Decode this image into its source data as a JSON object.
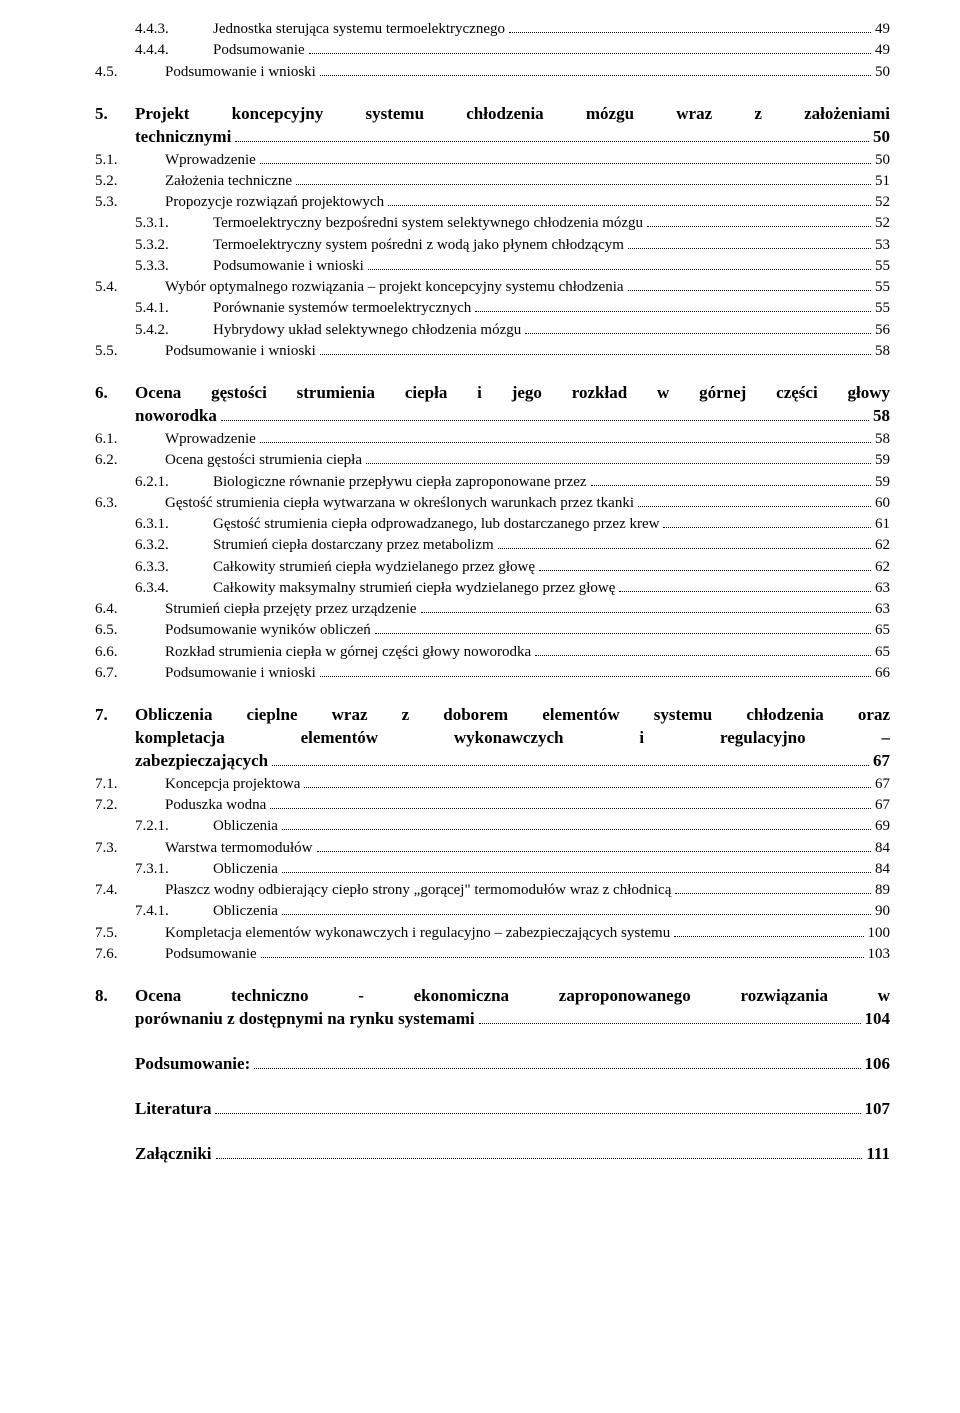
{
  "entries": [
    {
      "lvl": 3,
      "num": "4.4.3.",
      "title": "Jednostka sterująca systemu termoelektrycznego",
      "page": "49"
    },
    {
      "lvl": 3,
      "num": "4.4.4.",
      "title": "Podsumowanie",
      "page": "49"
    },
    {
      "lvl": 2,
      "num": "4.5.",
      "title": "Podsumowanie i wnioski",
      "page": "50"
    }
  ],
  "ch5": {
    "num": "5.",
    "line1": "Projekt koncepcyjny systemu chłodzenia mózgu wraz z założeniami",
    "line2_tail": "technicznymi",
    "page": "50"
  },
  "entries5": [
    {
      "lvl": 2,
      "num": "5.1.",
      "title": "Wprowadzenie",
      "page": "50"
    },
    {
      "lvl": 2,
      "num": "5.2.",
      "title": "Założenia techniczne",
      "page": "51"
    },
    {
      "lvl": 2,
      "num": "5.3.",
      "title": "Propozycje rozwiązań projektowych",
      "page": "52"
    },
    {
      "lvl": 3,
      "num": "5.3.1.",
      "title": "Termoelektryczny bezpośredni system selektywnego chłodzenia mózgu",
      "page": "52"
    },
    {
      "lvl": 3,
      "num": "5.3.2.",
      "title": "Termoelektryczny system pośredni z wodą jako płynem chłodzącym",
      "page": "53"
    },
    {
      "lvl": 3,
      "num": "5.3.3.",
      "title": "Podsumowanie i wnioski",
      "page": "55"
    },
    {
      "lvl": 2,
      "num": "5.4.",
      "title": "Wybór optymalnego rozwiązania – projekt koncepcyjny systemu chłodzenia",
      "page": "55"
    },
    {
      "lvl": 3,
      "num": "5.4.1.",
      "title": "Porównanie systemów termoelektrycznych",
      "page": "55"
    },
    {
      "lvl": 3,
      "num": "5.4.2.",
      "title": "Hybrydowy układ selektywnego chłodzenia mózgu",
      "page": "56"
    },
    {
      "lvl": 2,
      "num": "5.5.",
      "title": "Podsumowanie i wnioski",
      "page": "58"
    }
  ],
  "ch6": {
    "num": "6.",
    "line1": "Ocena gęstości strumienia ciepła i jego rozkład w górnej części głowy",
    "line2_tail": "noworodka",
    "page": "58"
  },
  "entries6": [
    {
      "lvl": 2,
      "num": "6.1.",
      "title": "Wprowadzenie",
      "page": "58"
    },
    {
      "lvl": 2,
      "num": "6.2.",
      "title": "Ocena gęstości strumienia ciepła",
      "page": "59"
    },
    {
      "lvl": 3,
      "num": "6.2.1.",
      "title": "Biologiczne równanie przepływu ciepła zaproponowane przez",
      "page": "59"
    },
    {
      "lvl": 2,
      "num": "6.3.",
      "title": "Gęstość strumienia ciepła wytwarzana w określonych warunkach przez tkanki",
      "page": "60"
    },
    {
      "lvl": 3,
      "num": "6.3.1.",
      "title": "Gęstość strumienia ciepła odprowadzanego, lub dostarczanego przez krew",
      "page": "61"
    },
    {
      "lvl": 3,
      "num": "6.3.2.",
      "title": "Strumień ciepła dostarczany przez metabolizm",
      "page": "62"
    },
    {
      "lvl": 3,
      "num": "6.3.3.",
      "title": "Całkowity strumień ciepła wydzielanego przez głowę",
      "page": "62"
    },
    {
      "lvl": 3,
      "num": "6.3.4.",
      "title": "Całkowity maksymalny strumień ciepła wydzielanego przez głowę",
      "page": "63"
    },
    {
      "lvl": 2,
      "num": "6.4.",
      "title": "Strumień ciepła przejęty przez urządzenie",
      "page": "63"
    },
    {
      "lvl": 2,
      "num": "6.5.",
      "title": "Podsumowanie wyników obliczeń",
      "page": "65"
    },
    {
      "lvl": 2,
      "num": "6.6.",
      "title": "Rozkład strumienia ciepła w górnej części głowy noworodka",
      "page": "65"
    },
    {
      "lvl": 2,
      "num": "6.7.",
      "title": "Podsumowanie i wnioski",
      "page": "66"
    }
  ],
  "ch7": {
    "num": "7.",
    "line1": "Obliczenia cieplne wraz z doborem elementów systemu chłodzenia oraz",
    "line2": "kompletacja elementów wykonawczych i regulacyjno –",
    "line3_tail": "zabezpieczających",
    "page": "67"
  },
  "entries7": [
    {
      "lvl": 2,
      "num": "7.1.",
      "title": "Koncepcja projektowa",
      "page": "67"
    },
    {
      "lvl": 2,
      "num": "7.2.",
      "title": "Poduszka wodna",
      "page": "67"
    },
    {
      "lvl": 3,
      "num": "7.2.1.",
      "title": "Obliczenia",
      "page": "69"
    },
    {
      "lvl": 2,
      "num": "7.3.",
      "title": "Warstwa termomodułów",
      "page": "84"
    },
    {
      "lvl": 3,
      "num": "7.3.1.",
      "title": "Obliczenia",
      "page": "84"
    },
    {
      "lvl": 2,
      "num": "7.4.",
      "title": "Płaszcz wodny odbierający ciepło strony „gorącej\" termomodułów wraz z chłodnicą",
      "page": "89"
    },
    {
      "lvl": 3,
      "num": "7.4.1.",
      "title": "Obliczenia",
      "page": "90"
    },
    {
      "lvl": 2,
      "num": "7.5.",
      "title": "Kompletacja elementów wykonawczych i regulacyjno – zabezpieczających systemu",
      "page": "100"
    },
    {
      "lvl": 2,
      "num": "7.6.",
      "title": "Podsumowanie",
      "page": "103"
    }
  ],
  "ch8": {
    "num": "8.",
    "line1": "Ocena techniczno - ekonomiczna zaproponowanego rozwiązania w",
    "line2_tail": "porównaniu z dostępnymi na rynku systemami",
    "page": "104"
  },
  "standalone": [
    {
      "title": "Podsumowanie:",
      "page": "106"
    },
    {
      "title": "Literatura",
      "page": "107"
    },
    {
      "title": "Załączniki",
      "page": "111"
    }
  ]
}
